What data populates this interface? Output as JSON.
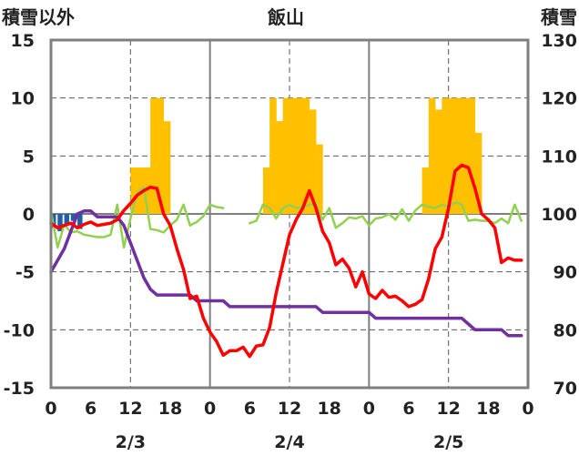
{
  "chart_data": {
    "type": "line",
    "title": "飯山",
    "left_axis_label": "積雪以外",
    "right_axis_label": "積雪",
    "ylim_left": [
      -15,
      15
    ],
    "ylim_right": [
      70,
      130
    ],
    "y_ticks_left": [
      "15",
      "10",
      "5",
      "0",
      "-5",
      "-10",
      "-15"
    ],
    "y_ticks_right": [
      "130",
      "120",
      "110",
      "100",
      "90",
      "80",
      "70"
    ],
    "x_range_hours": [
      0,
      72
    ],
    "x_ticks": [
      "0",
      "6",
      "12",
      "18",
      "0",
      "6",
      "12",
      "18",
      "0",
      "6",
      "12",
      "18",
      "0"
    ],
    "date_labels": [
      "2/3",
      "2/4",
      "2/5"
    ],
    "colors": {
      "snowfall_bars": "#FFC000",
      "temperature": "#FF0000",
      "wind": "#92D050",
      "snow_depth": "#7030A0",
      "precipitation": "#1F5FA8",
      "frame": "#7F7F7F",
      "grid_dash": "#595959"
    },
    "snowfall_bars": {
      "x_hours": [
        12,
        13,
        14,
        15,
        16,
        17,
        32,
        33,
        34,
        35,
        36,
        37,
        38,
        39,
        40,
        41,
        56,
        57,
        58,
        59,
        60,
        61,
        62,
        63,
        64,
        65
      ],
      "values": [
        4,
        4,
        4,
        10,
        10,
        8,
        4,
        10,
        8,
        10,
        10,
        10,
        10,
        9,
        6,
        0,
        4,
        10,
        9,
        10,
        10,
        10,
        10,
        10,
        7,
        0
      ]
    },
    "precipitation_bars": {
      "x_hours": [
        0,
        1,
        2,
        3,
        4
      ],
      "values": [
        -1.2,
        -1.5,
        -1.0,
        -0.6,
        -1.3
      ]
    },
    "series": [
      {
        "key": "temperature",
        "x": [
          0,
          1,
          2,
          3,
          4,
          5,
          6,
          7,
          8,
          9,
          10,
          11,
          12,
          13,
          14,
          15,
          16,
          17,
          18,
          19,
          20,
          21,
          22,
          23,
          24,
          25,
          26,
          27,
          28,
          29,
          30,
          31,
          32,
          33,
          34,
          35,
          36,
          37,
          38,
          39,
          40,
          41,
          42,
          43,
          44,
          45,
          46,
          47,
          48,
          49,
          50,
          51,
          52,
          53,
          54,
          55,
          56,
          57,
          58,
          59,
          60,
          61,
          62,
          63,
          64,
          65,
          66,
          67,
          68,
          69,
          70,
          71
        ],
        "values": [
          -0.8,
          -1.2,
          -1.0,
          -0.8,
          -1.2,
          -0.9,
          -0.7,
          -1.0,
          -0.9,
          -0.8,
          -0.5,
          0.3,
          0.9,
          1.6,
          2.0,
          2.3,
          2.2,
          0.0,
          -1.0,
          -3.0,
          -4.8,
          -7.3,
          -7.1,
          -9.0,
          -10.2,
          -11.0,
          -12.2,
          -11.8,
          -11.8,
          -11.5,
          -12.3,
          -11.4,
          -11.3,
          -9.8,
          -6.8,
          -4.3,
          -1.8,
          -0.5,
          0.5,
          2.0,
          0.5,
          -1.5,
          -2.5,
          -4.4,
          -3.9,
          -4.7,
          -6.3,
          -5.0,
          -6.9,
          -7.3,
          -6.6,
          -7.2,
          -7.1,
          -7.5,
          -8.0,
          -7.8,
          -7.4,
          -5.6,
          -3.0,
          -2.0,
          0.5,
          3.7,
          4.2,
          4.0,
          2.2,
          0.0,
          -0.5,
          -1.2,
          -4.2,
          -3.8,
          -4.0,
          -4.0
        ]
      },
      {
        "key": "wind",
        "x": [
          0,
          1,
          2,
          3,
          4,
          5,
          6,
          7,
          8,
          9,
          10,
          11,
          12,
          13,
          14,
          15,
          16,
          17,
          18,
          19,
          20,
          21,
          22,
          23,
          24,
          25,
          26,
          30,
          31,
          32,
          33,
          34,
          35,
          36,
          37,
          38,
          39,
          40,
          41,
          42,
          43,
          44,
          45,
          46,
          47,
          48,
          49,
          50,
          51,
          52,
          53,
          54,
          55,
          56,
          57,
          58,
          59,
          60,
          61,
          62,
          63,
          64,
          65,
          66,
          67,
          68,
          69,
          70,
          71
        ],
        "values": [
          0.2,
          -2.9,
          -0.9,
          -1.6,
          -1.5,
          -1.8,
          -1.9,
          -2.0,
          -2.0,
          -1.8,
          0.8,
          -2.9,
          -0.4,
          1.8,
          2.3,
          -1.3,
          -1.4,
          -1.6,
          -1.0,
          -0.5,
          0.8,
          -1.0,
          -0.7,
          -0.2,
          0.8,
          0.6,
          0.5,
          -0.8,
          -0.6,
          0.8,
          0.5,
          -0.4,
          0.5,
          0.8,
          0.5,
          0.6,
          0.8,
          0.8,
          -0.5,
          0.5,
          -1.2,
          -0.8,
          -0.3,
          -0.4,
          -0.2,
          -1.0,
          -0.4,
          -0.3,
          0.0,
          -0.5,
          0.4,
          -0.6,
          0.3,
          0.8,
          0.6,
          0.5,
          0.8,
          0.6,
          1.0,
          0.8,
          -0.6,
          -0.5,
          -0.6,
          -0.6,
          -0.8,
          -0.4,
          -0.8,
          0.8,
          -0.6
        ]
      },
      {
        "key": "snow_depth",
        "x": [
          0,
          2,
          4,
          5,
          6,
          7,
          8,
          9,
          10,
          11,
          12,
          13,
          14,
          15,
          16,
          17,
          18,
          19,
          20,
          21,
          22,
          23,
          24,
          25,
          26,
          27,
          28,
          29,
          30,
          31,
          32,
          33,
          34,
          35,
          36,
          37,
          38,
          39,
          40,
          41,
          42,
          43,
          44,
          45,
          46,
          47,
          48,
          49,
          50,
          51,
          52,
          53,
          54,
          55,
          56,
          57,
          58,
          59,
          60,
          61,
          62,
          63,
          64,
          65,
          66,
          67,
          68,
          69,
          70,
          71
        ],
        "values": [
          90,
          94,
          100,
          100.5,
          100.5,
          99.5,
          99.5,
          99.5,
          99.5,
          98,
          95,
          92,
          89,
          87,
          86,
          86,
          86,
          86,
          86,
          86,
          85,
          85,
          85,
          85,
          85,
          84,
          84,
          84,
          84,
          84,
          84,
          84,
          84,
          84,
          84,
          84,
          84,
          84,
          84,
          83,
          83,
          83,
          83,
          83,
          83,
          83,
          83,
          82,
          82,
          82,
          82,
          82,
          82,
          82,
          82,
          82,
          82,
          82,
          82,
          82,
          82,
          81,
          80,
          80,
          80,
          80,
          80,
          79,
          79,
          79
        ]
      }
    ]
  }
}
